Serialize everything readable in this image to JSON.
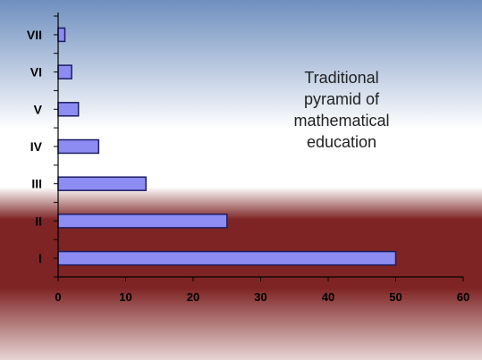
{
  "chart_data": {
    "type": "bar",
    "orientation": "horizontal",
    "categories": [
      "I",
      "II",
      "III",
      "IV",
      "V",
      "VI",
      "VII"
    ],
    "values": [
      50,
      25,
      13,
      6,
      3,
      2,
      1
    ],
    "xlim": [
      0,
      60
    ],
    "x_ticks": [
      "0",
      "10",
      "20",
      "30",
      "40",
      "50",
      "60"
    ],
    "annotation_lines": [
      "Traditional",
      "pyramid of",
      "mathematical",
      "education"
    ],
    "grid": false,
    "legend": false,
    "colors": {
      "bar_fill": "#8c8cf2",
      "bar_stroke": "#1c1c66",
      "bg_top": "#6f8fbf",
      "bg_mid": "#ffffff",
      "bg_dark": "#7e2424",
      "bg_bottom": "#e8d4d4"
    }
  }
}
